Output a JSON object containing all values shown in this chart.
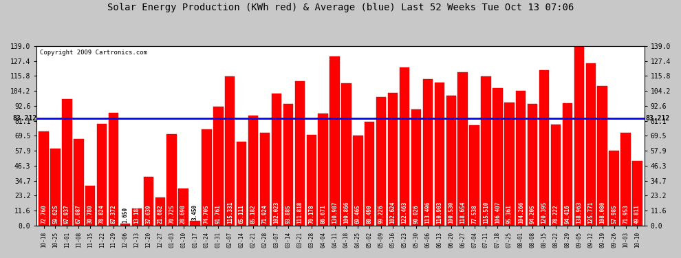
{
  "title": "Solar Energy Production (KWh red) & Average (blue) Last 52 Weeks Tue Oct 13 07:06",
  "copyright": "Copyright 2009 Cartronics.com",
  "average": 83.212,
  "bar_color": "#ff0000",
  "avg_line_color": "#0000ff",
  "fig_bg_color": "#c8c8c8",
  "plot_bg_color": "#ffffff",
  "categories": [
    "10-18",
    "10-25",
    "11-01",
    "11-08",
    "11-15",
    "11-22",
    "11-29",
    "12-06",
    "12-13",
    "12-20",
    "12-27",
    "01-03",
    "01-10",
    "01-17",
    "01-24",
    "01-31",
    "02-07",
    "02-14",
    "02-21",
    "02-28",
    "03-07",
    "03-14",
    "03-21",
    "03-28",
    "04-04",
    "04-11",
    "04-18",
    "04-25",
    "05-02",
    "05-09",
    "05-16",
    "05-23",
    "05-30",
    "06-06",
    "06-13",
    "06-20",
    "06-27",
    "07-04",
    "07-11",
    "07-18",
    "07-25",
    "08-01",
    "08-08",
    "08-15",
    "08-22",
    "08-29",
    "09-05",
    "09-12",
    "09-19",
    "09-26",
    "10-03",
    "10-10"
  ],
  "values": [
    72.76,
    59.625,
    97.937,
    67.087,
    30.78,
    78.824,
    87.372,
    1.65,
    13.188,
    37.639,
    21.682,
    70.725,
    28.698,
    3.45,
    74.705,
    91.761,
    115.331,
    65.111,
    85.182,
    71.924,
    102.023,
    93.885,
    111.818,
    70.178,
    86.671,
    130.987,
    109.866,
    69.465,
    80.49,
    99.226,
    102.624,
    122.463,
    90.026,
    113.496,
    110.903,
    100.53,
    118.654,
    77.538,
    115.51,
    106.407,
    95.361,
    104.266,
    94.205,
    120.395,
    78.222,
    94.416,
    138.963,
    125.771,
    108.08,
    57.985,
    71.953,
    49.811
  ],
  "ylim": [
    0,
    139.0
  ],
  "yticks": [
    0.0,
    11.6,
    23.2,
    34.7,
    46.3,
    57.9,
    69.5,
    81.1,
    92.6,
    104.2,
    115.8,
    127.4,
    139.0
  ],
  "avg_label": "83.212",
  "grid_color": "#ffffff",
  "bar_width": 0.85,
  "title_fontsize": 10,
  "tick_fontsize": 7,
  "label_fontsize": 5.5,
  "copyright_fontsize": 6.5
}
